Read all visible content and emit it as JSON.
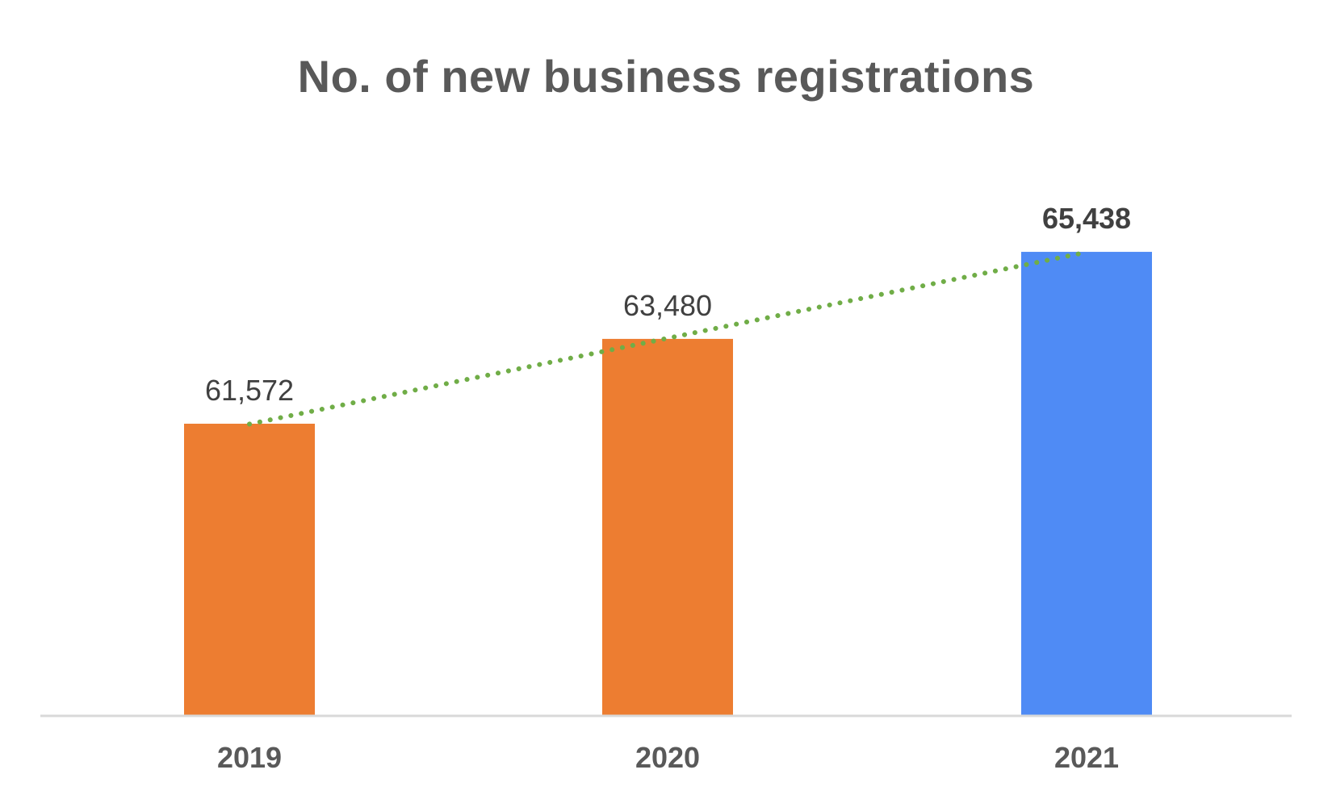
{
  "chart_data": {
    "type": "bar",
    "title": "No. of new business registrations",
    "categories": [
      "2019",
      "2020",
      "2021"
    ],
    "values": [
      61572,
      63480,
      65438
    ],
    "data_labels": [
      "61,572",
      "63,480",
      "65,438"
    ],
    "bar_colors": [
      "#ED7D31",
      "#ED7D31",
      "#4F8BF5"
    ],
    "label_bold": [
      false,
      false,
      true
    ],
    "trendline": {
      "style": "dotted",
      "color": "#70AD47"
    },
    "axis_color": "#D9D9D9",
    "ylim": [
      55000,
      67000
    ],
    "grid": false,
    "legend": "none"
  }
}
